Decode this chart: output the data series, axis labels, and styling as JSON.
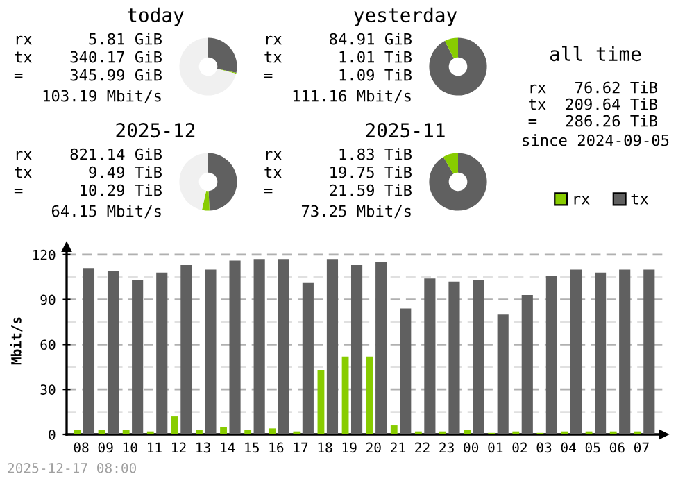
{
  "chart_data": [
    {
      "type": "donut",
      "title": "today",
      "categories": [
        null,
        null,
        null
      ],
      "values": [
        28.5,
        0.5,
        71
      ],
      "colors": [
        "#606060",
        "#88cc00",
        "#f0f0f0"
      ],
      "annotations": [
        "rx      5.81 GiB",
        "tx    340.17 GiB",
        "=     345.99 GiB",
        "103.19 Mbit/s"
      ]
    },
    {
      "type": "donut",
      "title": "yesterday",
      "categories": [
        null,
        null,
        null
      ],
      "values": [
        92.4,
        7.6,
        0
      ],
      "colors": [
        "#606060",
        "#88cc00",
        "#f0f0f0"
      ],
      "annotations": [
        "rx     84.91 GiB",
        "tx      1.01 TiB",
        "=       1.09 TiB",
        "111.16 Mbit/s"
      ]
    },
    {
      "type": "donut",
      "title": "2025-12",
      "categories": [
        null,
        null,
        null
      ],
      "values": [
        49.3,
        4.2,
        46.5
      ],
      "colors": [
        "#606060",
        "#88cc00",
        "#f0f0f0"
      ],
      "annotations": [
        "rx    821.14 GiB",
        "tx      9.49 TiB",
        "=      10.29 TiB",
        "64.15 Mbit/s"
      ]
    },
    {
      "type": "donut",
      "title": "2025-11",
      "categories": [
        null,
        null,
        null
      ],
      "values": [
        91.5,
        8.5,
        0
      ],
      "colors": [
        "#606060",
        "#88cc00",
        "#f0f0f0"
      ],
      "annotations": [
        "rx      1.83 TiB",
        "tx     19.75 TiB",
        "=      21.59 TiB",
        "73.25 Mbit/s"
      ]
    },
    {
      "type": "other",
      "title": "all time",
      "annotations": [
        "rx   76.62 TiB",
        "tx  209.64 TiB",
        "=   286.26 TiB",
        "since 2024-09-05"
      ]
    },
    {
      "type": "bar",
      "ylabel": "Mbit/s",
      "categories": [
        "08",
        "09",
        "10",
        "11",
        "12",
        "13",
        "14",
        "15",
        "16",
        "17",
        "18",
        "19",
        "20",
        "21",
        "22",
        "23",
        "00",
        "01",
        "02",
        "03",
        "04",
        "05",
        "06",
        "07"
      ],
      "series": [
        {
          "name": "rx",
          "color": "#88cc00",
          "values": [
            3,
            3,
            3,
            2,
            12,
            3,
            5,
            3,
            4,
            2,
            43,
            52,
            52,
            6,
            2,
            2,
            3,
            1,
            2,
            1,
            2,
            2,
            2,
            2
          ]
        },
        {
          "name": "tx",
          "color": "#606060",
          "values": [
            111,
            109,
            103,
            108,
            113,
            110,
            116,
            117,
            117,
            101,
            117,
            113,
            115,
            84,
            104,
            102,
            103,
            80,
            93,
            106,
            110,
            108,
            110,
            110
          ]
        }
      ],
      "ylim": [
        0,
        125
      ],
      "yticks": [
        0,
        30,
        60,
        90,
        120
      ],
      "grid": "y",
      "legend": "top right",
      "annotations": [
        "2025-12-17 08:00"
      ]
    }
  ]
}
